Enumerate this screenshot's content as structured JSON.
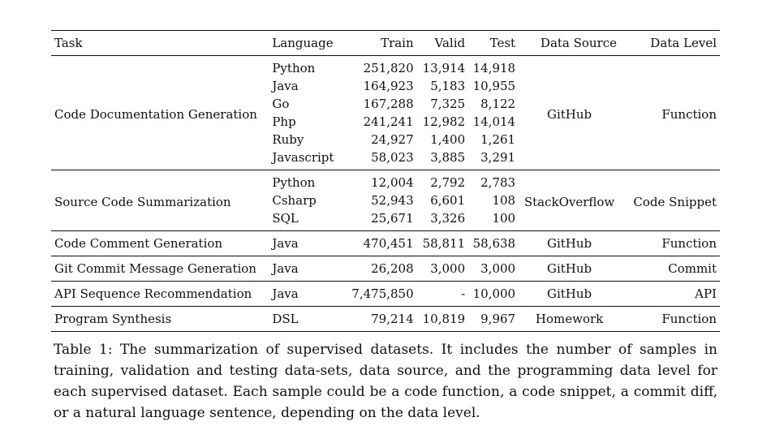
{
  "table": {
    "headers": {
      "task": "Task",
      "language": "Language",
      "train": "Train",
      "valid": "Valid",
      "test": "Test",
      "source": "Data Source",
      "level": "Data Level"
    },
    "groups": [
      {
        "task": "Code Documentation Generation",
        "source": "GitHub",
        "level": "Function",
        "rows": [
          {
            "language": "Python",
            "train": "251,820",
            "valid": "13,914",
            "test": "14,918"
          },
          {
            "language": "Java",
            "train": "164,923",
            "valid": "5,183",
            "test": "10,955"
          },
          {
            "language": "Go",
            "train": "167,288",
            "valid": "7,325",
            "test": "8,122"
          },
          {
            "language": "Php",
            "train": "241,241",
            "valid": "12,982",
            "test": "14,014"
          },
          {
            "language": "Ruby",
            "train": "24,927",
            "valid": "1,400",
            "test": "1,261"
          },
          {
            "language": "Javascript",
            "train": "58,023",
            "valid": "3,885",
            "test": "3,291"
          }
        ]
      },
      {
        "task": "Source Code Summarization",
        "source": "StackOverflow",
        "level": "Code Snippet",
        "rows": [
          {
            "language": "Python",
            "train": "12,004",
            "valid": "2,792",
            "test": "2,783"
          },
          {
            "language": "Csharp",
            "train": "52,943",
            "valid": "6,601",
            "test": "108"
          },
          {
            "language": "SQL",
            "train": "25,671",
            "valid": "3,326",
            "test": "100"
          }
        ]
      },
      {
        "task": "Code Comment Generation",
        "source": "GitHub",
        "level": "Function",
        "rows": [
          {
            "language": "Java",
            "train": "470,451",
            "valid": "58,811",
            "test": "58,638"
          }
        ]
      },
      {
        "task": "Git Commit Message Generation",
        "source": "GitHub",
        "level": "Commit",
        "rows": [
          {
            "language": "Java",
            "train": "26,208",
            "valid": "3,000",
            "test": "3,000"
          }
        ]
      },
      {
        "task": "API Sequence Recommendation",
        "source": "GitHub",
        "level": "API",
        "rows": [
          {
            "language": "Java",
            "train": "7,475,850",
            "valid": "-",
            "test": "10,000"
          }
        ]
      },
      {
        "task": "Program Synthesis",
        "source": "Homework",
        "level": "Function",
        "rows": [
          {
            "language": "DSL",
            "train": "79,214",
            "valid": "10,819",
            "test": "9,967"
          }
        ]
      }
    ]
  },
  "caption": "Table 1: The summarization of supervised datasets. It includes the number of samples in training, validation and testing data-sets, data source, and the programming data level for each supervised dataset. Each sample could be a code function, a code snippet, a commit diff, or a natural language sentence, depending on the data level."
}
